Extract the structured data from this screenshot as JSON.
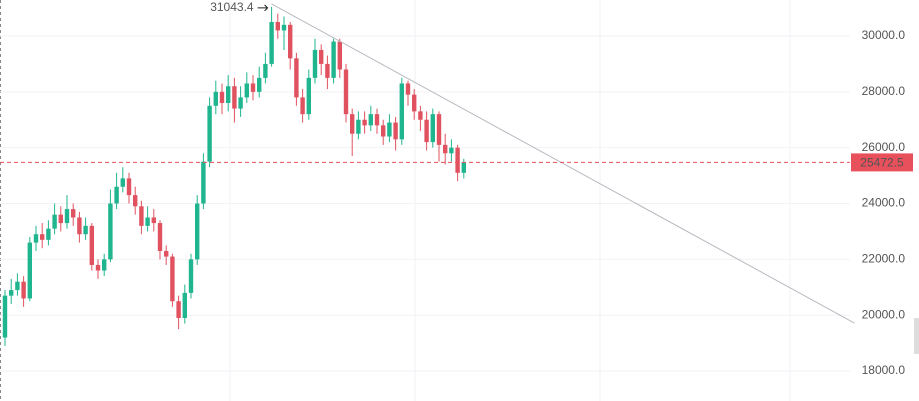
{
  "chart_data": {
    "type": "candlestick",
    "open": [
      19200,
      20700,
      20900,
      21200,
      20600,
      22600,
      22900,
      22700,
      23100,
      23600,
      23300,
      23800,
      23500,
      22900,
      23200,
      21800,
      21600,
      22000,
      24000,
      24600,
      24900,
      24300,
      23900,
      23200,
      23500,
      23300,
      22300,
      22100,
      20500,
      19900,
      20800,
      22000,
      24000,
      25500,
      27500,
      28000,
      27600,
      28200,
      27400,
      27800,
      28300,
      28000,
      28500,
      29000,
      30500,
      30200,
      30400,
      29200,
      27800,
      27200,
      28500,
      29500,
      29000,
      28500,
      29800,
      28800,
      27200,
      26500,
      27000,
      26800,
      27200,
      26800,
      26400,
      26900,
      26300,
      28300,
      27900,
      27300,
      27000,
      26200,
      27200,
      26100,
      25800,
      26000,
      25100
    ],
    "high": [
      20900,
      21300,
      21500,
      21400,
      22800,
      23200,
      23300,
      23400,
      24000,
      23900,
      24300,
      24000,
      23700,
      23500,
      23300,
      22000,
      22200,
      24500,
      25100,
      25300,
      25100,
      24600,
      24100,
      23900,
      23800,
      23400,
      22500,
      22200,
      20700,
      21100,
      22200,
      24300,
      25800,
      27800,
      28400,
      28300,
      28600,
      28500,
      28200,
      28700,
      28600,
      28900,
      29400,
      31043.4,
      30800,
      30700,
      30500,
      29400,
      28100,
      28800,
      29900,
      29700,
      29300,
      29900,
      29900,
      29000,
      27400,
      27300,
      27300,
      27500,
      27400,
      27000,
      27200,
      27100,
      28500,
      28400,
      28100,
      27500,
      27300,
      27400,
      27300,
      26500,
      26300,
      26100,
      25600
    ],
    "low": [
      18900,
      20400,
      20700,
      20300,
      20500,
      22300,
      22400,
      22500,
      22900,
      23000,
      23100,
      23200,
      22600,
      22700,
      21600,
      21300,
      21400,
      21900,
      23800,
      24400,
      24000,
      23600,
      22900,
      23000,
      23000,
      22000,
      21800,
      20300,
      19500,
      19700,
      20600,
      21800,
      23800,
      25300,
      27200,
      27200,
      27300,
      26900,
      27100,
      27600,
      27700,
      27800,
      28300,
      28900,
      29900,
      29500,
      28800,
      27500,
      26900,
      27000,
      28300,
      28600,
      28100,
      28300,
      28500,
      26900,
      25700,
      26300,
      26500,
      26600,
      26500,
      26100,
      26200,
      25900,
      26100,
      27500,
      27000,
      26600,
      25900,
      26000,
      25500,
      25400,
      25500,
      24800,
      24900
    ],
    "close": [
      20700,
      20900,
      21200,
      20600,
      22600,
      22900,
      22700,
      23100,
      23600,
      23300,
      23800,
      23500,
      22900,
      23200,
      21800,
      21600,
      22000,
      24000,
      24600,
      24900,
      24300,
      23900,
      23200,
      23500,
      23300,
      22300,
      22100,
      20500,
      19900,
      20800,
      22000,
      24000,
      25500,
      27500,
      28000,
      27600,
      28200,
      27400,
      27800,
      28300,
      28000,
      28500,
      29000,
      30500,
      30200,
      30400,
      29200,
      27800,
      27200,
      28500,
      29500,
      29000,
      28500,
      29800,
      28800,
      27200,
      26500,
      27000,
      26800,
      27200,
      26800,
      26400,
      26900,
      26300,
      28300,
      27900,
      27300,
      27000,
      26200,
      27200,
      26100,
      25800,
      26000,
      25100,
      25472.5
    ],
    "up_color": "#1fb58f",
    "down_color": "#e0525f",
    "ylim": [
      16927,
      31289
    ],
    "yticks": [
      {
        "value": 18000,
        "label": "18000.0"
      },
      {
        "value": 20000,
        "label": "20000.0"
      },
      {
        "value": 22000,
        "label": "22000.0"
      },
      {
        "value": 24000,
        "label": "24000.0"
      },
      {
        "value": 26000,
        "label": "26000.0"
      },
      {
        "value": 28000,
        "label": "28000.0"
      },
      {
        "value": 30000,
        "label": "30000.0"
      }
    ],
    "grid": true,
    "trendline": {
      "x": [
        43,
        137
      ],
      "y": [
        31150,
        19720
      ],
      "color": "#b8b8c0"
    },
    "last_price_color": "#e8505b"
  }
}
